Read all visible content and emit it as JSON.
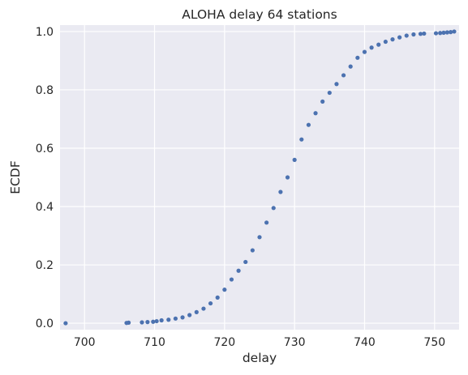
{
  "chart_data": {
    "type": "scatter",
    "title": "ALOHA delay 64 stations",
    "xlabel": "delay",
    "ylabel": "ECDF",
    "xlim": [
      696.5,
      753.5
    ],
    "ylim": [
      -0.022,
      1.022
    ],
    "xticks": [
      700,
      710,
      720,
      730,
      740,
      750
    ],
    "yticks": [
      0.0,
      0.2,
      0.4,
      0.6,
      0.8,
      1.0
    ],
    "xtick_labels": [
      "700",
      "710",
      "720",
      "730",
      "740",
      "750"
    ],
    "ytick_labels": [
      "0.0",
      "0.2",
      "0.4",
      "0.6",
      "0.8",
      "1.0"
    ],
    "grid": true,
    "background": "#eaeaf2",
    "grid_color": "#ffffff",
    "marker_color": "#4c72b0",
    "series": [
      {
        "x": [
          697.3,
          706.0,
          706.3,
          708.2,
          709.0,
          709.8,
          710.3,
          711.0,
          712.0,
          713.0,
          714.0,
          715.0,
          716.0,
          717.0,
          718.0,
          719.0,
          720.0,
          721.0,
          722.0,
          723.0,
          724.0,
          725.0,
          726.0,
          727.0,
          728.0,
          729.0,
          730.0,
          731.0,
          732.0,
          733.0,
          734.0,
          735.0,
          736.0,
          737.0,
          738.0,
          739.0,
          740.0,
          741.0,
          742.0,
          743.0,
          744.0,
          745.0,
          746.0,
          747.0,
          748.0,
          748.5,
          750.2,
          750.8,
          751.3,
          751.8,
          752.3,
          752.8
        ],
        "y": [
          0.0,
          0.001,
          0.002,
          0.003,
          0.004,
          0.005,
          0.007,
          0.01,
          0.012,
          0.016,
          0.02,
          0.028,
          0.038,
          0.05,
          0.068,
          0.088,
          0.115,
          0.15,
          0.18,
          0.21,
          0.25,
          0.295,
          0.345,
          0.395,
          0.45,
          0.5,
          0.56,
          0.63,
          0.68,
          0.72,
          0.76,
          0.79,
          0.82,
          0.85,
          0.88,
          0.91,
          0.93,
          0.945,
          0.955,
          0.965,
          0.973,
          0.98,
          0.986,
          0.99,
          0.992,
          0.993,
          0.994,
          0.995,
          0.996,
          0.997,
          0.998,
          1.0
        ]
      }
    ]
  }
}
